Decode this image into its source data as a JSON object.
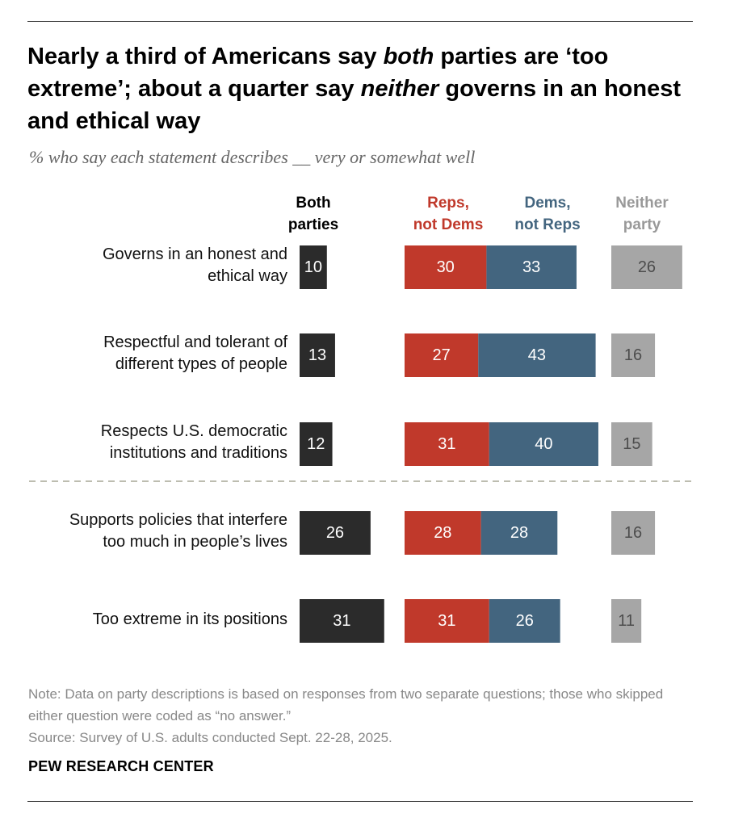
{
  "title": {
    "part1": "Nearly a third of Americans say ",
    "em1": "both",
    "part2": " parties are ‘too extreme’; about a quarter say ",
    "em2": "neither",
    "part3": " governs in an honest and ethical way"
  },
  "subtitle": "% who say each statement describes __ very or somewhat well",
  "columns": {
    "both": [
      "Both",
      "parties"
    ],
    "reps": [
      "Reps,",
      "not Dems"
    ],
    "dems": [
      "Dems,",
      "not Reps"
    ],
    "neither": [
      "Neither",
      "party"
    ]
  },
  "colors": {
    "both": "#2b2b2b",
    "reps": "#c0392b",
    "dems": "#43657f",
    "neither": "#a6a6a6",
    "divider": "#bdbdb0"
  },
  "chart_data": {
    "type": "bar",
    "title": "Nearly a third of Americans say both parties are ‘too extreme’; about a quarter say neither governs in an honest and ethical way",
    "ylabel": "% who say each statement describes __ very or somewhat well",
    "categories": [
      [
        "Governs in an honest and",
        "ethical way"
      ],
      [
        "Respectful and tolerant of",
        "different types of people"
      ],
      [
        "Respects U.S. democratic",
        "institutions and traditions"
      ],
      [
        "Supports policies that interfere",
        "too much in people’s lives"
      ],
      [
        "Too extreme in its positions"
      ]
    ],
    "divider_after_index": 2,
    "series": [
      {
        "name": "Both parties",
        "key": "both",
        "values": [
          10,
          13,
          12,
          26,
          31
        ]
      },
      {
        "name": "Reps, not Dems",
        "key": "reps",
        "values": [
          30,
          27,
          31,
          28,
          31
        ]
      },
      {
        "name": "Dems, not Reps",
        "key": "dems",
        "values": [
          33,
          43,
          40,
          28,
          26
        ]
      },
      {
        "name": "Neither party",
        "key": "neither",
        "values": [
          26,
          16,
          15,
          16,
          11
        ]
      }
    ]
  },
  "note": "Note: Data on party descriptions is based on responses from two separate questions; those who skipped either question were coded as “no answer.”",
  "source": "Source: Survey of U.S. adults conducted Sept. 22-28, 2025.",
  "brand": "PEW RESEARCH CENTER"
}
